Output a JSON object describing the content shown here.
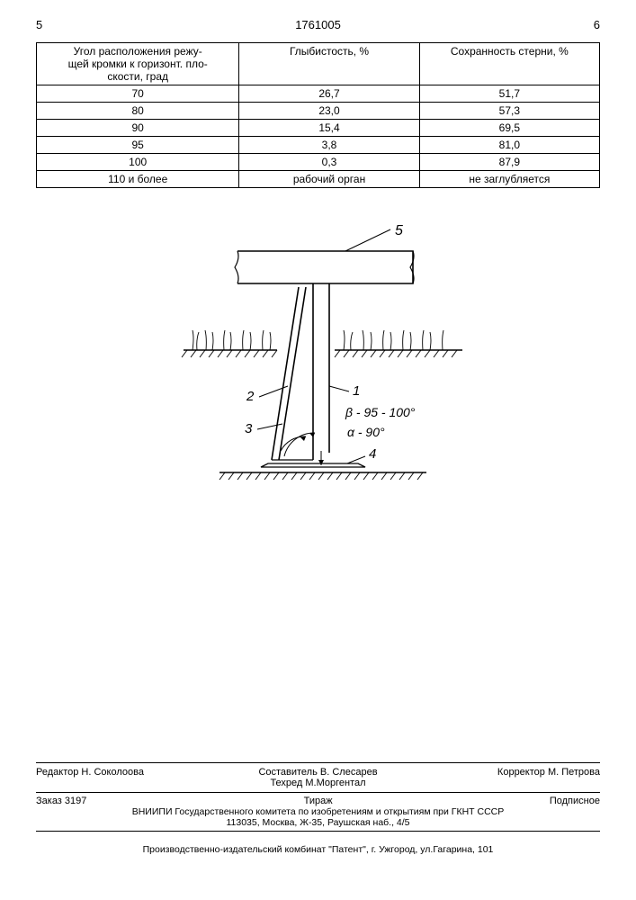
{
  "header": {
    "page_left": "5",
    "doc_number": "1761005",
    "page_right": "6"
  },
  "table": {
    "columns": [
      "Угол расположения режу-\nщей кромки к горизонт. пло-\nскости, град",
      "Глыбистость, %",
      "Сохранность стерни, %"
    ],
    "rows": [
      [
        "70",
        "26,7",
        "51,7"
      ],
      [
        "80",
        "23,0",
        "57,3"
      ],
      [
        "90",
        "15,4",
        "69,5"
      ],
      [
        "95",
        "3,8",
        "81,0"
      ],
      [
        "100",
        "0,3",
        "87,9"
      ],
      [
        "110 и более",
        "рабочий орган",
        "не заглубляется"
      ]
    ]
  },
  "figure": {
    "labels": {
      "l5": "5",
      "l2": "2",
      "l3": "3",
      "l1": "1",
      "l4": "4",
      "beta": "β - 95 - 100°",
      "alpha": "α - 90°"
    },
    "colors": {
      "stroke": "#000000",
      "bg": "#ffffff"
    }
  },
  "credits": {
    "editor_label": "Редактор",
    "editor": "Н. Соколоова",
    "compiler_label": "Составитель",
    "compiler": "В. Слесарев",
    "techred_label": "Техред",
    "techred": "М.Моргентал",
    "corrector_label": "Корректор",
    "corrector": "М. Петрова"
  },
  "order": {
    "zakaz_label": "Заказ",
    "zakaz": "3197",
    "tirazh_label": "Тираж",
    "sign_label": "Подписное",
    "org": "ВНИИПИ Государственного комитета по изобретениям и открытиям при ГКНТ СССР",
    "addr": "113035, Москва, Ж-35, Раушская наб., 4/5"
  },
  "publisher": "Производственно-издательский комбинат \"Патент\", г. Ужгород, ул.Гагарина, 101"
}
